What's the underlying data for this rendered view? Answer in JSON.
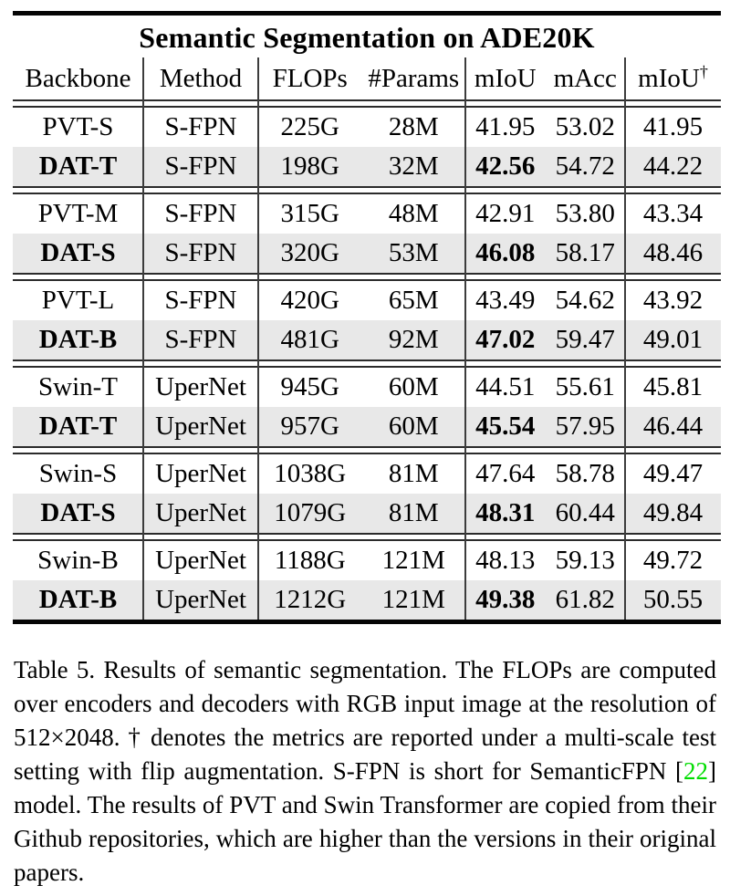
{
  "colors": {
    "row_highlight": "#e8e8e8",
    "rule_black": "#050505",
    "divider_gray": "#3c3c3c",
    "citation_green": "#00dd00"
  },
  "table": {
    "title": "Semantic Segmentation on ADE20K",
    "headers": {
      "backbone": "Backbone",
      "method": "Method",
      "flops": "FLOPs",
      "params": "#Params",
      "miou": "mIoU",
      "macc": "mAcc",
      "miou_multiscale": "mIoU",
      "dagger": "†"
    },
    "rows": [
      {
        "backbone": "PVT-S",
        "method": "S-FPN",
        "flops": "225G",
        "params": "28M",
        "miou": "41.95",
        "macc": "53.02",
        "miou_ms": "41.95",
        "highlight": false
      },
      {
        "backbone": "DAT-T",
        "method": "S-FPN",
        "flops": "198G",
        "params": "32M",
        "miou": "42.56",
        "macc": "54.72",
        "miou_ms": "44.22",
        "highlight": true
      },
      {
        "backbone": "PVT-M",
        "method": "S-FPN",
        "flops": "315G",
        "params": "48M",
        "miou": "42.91",
        "macc": "53.80",
        "miou_ms": "43.34",
        "highlight": false
      },
      {
        "backbone": "DAT-S",
        "method": "S-FPN",
        "flops": "320G",
        "params": "53M",
        "miou": "46.08",
        "macc": "58.17",
        "miou_ms": "48.46",
        "highlight": true
      },
      {
        "backbone": "PVT-L",
        "method": "S-FPN",
        "flops": "420G",
        "params": "65M",
        "miou": "43.49",
        "macc": "54.62",
        "miou_ms": "43.92",
        "highlight": false
      },
      {
        "backbone": "DAT-B",
        "method": "S-FPN",
        "flops": "481G",
        "params": "92M",
        "miou": "47.02",
        "macc": "59.47",
        "miou_ms": "49.01",
        "highlight": true
      },
      {
        "backbone": "Swin-T",
        "method": "UperNet",
        "flops": "945G",
        "params": "60M",
        "miou": "44.51",
        "macc": "55.61",
        "miou_ms": "45.81",
        "highlight": false
      },
      {
        "backbone": "DAT-T",
        "method": "UperNet",
        "flops": "957G",
        "params": "60M",
        "miou": "45.54",
        "macc": "57.95",
        "miou_ms": "46.44",
        "highlight": true
      },
      {
        "backbone": "Swin-S",
        "method": "UperNet",
        "flops": "1038G",
        "params": "81M",
        "miou": "47.64",
        "macc": "58.78",
        "miou_ms": "49.47",
        "highlight": false
      },
      {
        "backbone": "DAT-S",
        "method": "UperNet",
        "flops": "1079G",
        "params": "81M",
        "miou": "48.31",
        "macc": "60.44",
        "miou_ms": "49.84",
        "highlight": true
      },
      {
        "backbone": "Swin-B",
        "method": "UperNet",
        "flops": "1188G",
        "params": "121M",
        "miou": "48.13",
        "macc": "59.13",
        "miou_ms": "49.72",
        "highlight": false
      },
      {
        "backbone": "DAT-B",
        "method": "UperNet",
        "flops": "1212G",
        "params": "121M",
        "miou": "49.38",
        "macc": "61.82",
        "miou_ms": "50.55",
        "highlight": true
      }
    ]
  },
  "caption": {
    "part1": "Table 5. Results of semantic segmentation. The FLOPs are computed over encoders and decoders with RGB input image at the resolution of 512×2048. † denotes the metrics are reported under a multi-scale test setting with flip augmentation. S-FPN is short for SemanticFPN [",
    "citation": "22",
    "part2": "] model. The results of PVT and Swin Transformer are copied from their Github repositories, which are higher than the versions in their original papers."
  }
}
